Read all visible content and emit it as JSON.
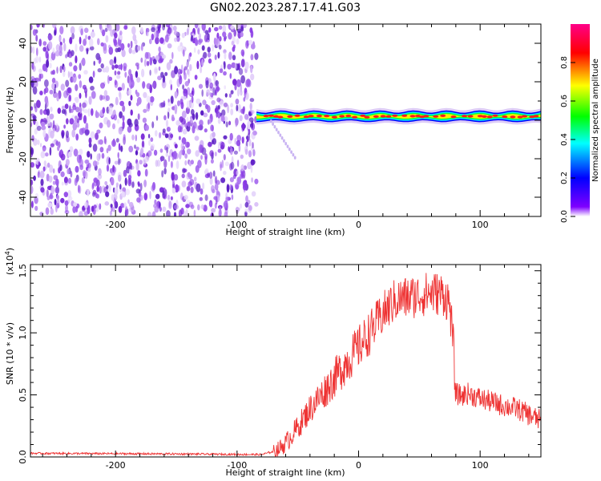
{
  "title": "GN02.2023.287.17.41.G03",
  "colors": {
    "snr_line": "#ee3333",
    "spectrogram_noise": "#7a2bd9"
  },
  "chart_data": [
    {
      "type": "heatmap",
      "name": "spectrogram",
      "xlabel": "Height of straight line (km)",
      "ylabel": "Frequency (Hz)",
      "xlim": [
        -270,
        150
      ],
      "ylim": [
        -50,
        50
      ],
      "x_ticks": [
        -200,
        -100,
        0,
        100
      ],
      "y_ticks": [
        -40,
        -20,
        0,
        20,
        40
      ],
      "noise_region_x": [
        -270,
        -84
      ],
      "signal_region_x": [
        -84,
        150
      ],
      "signal_frequency_hz": 2,
      "colorbar": {
        "label": "Normalized spectral amplitude",
        "range": [
          0.0,
          1.0
        ],
        "ticks": [
          "0.0",
          "0.2",
          "0.4",
          "0.6",
          "0.8"
        ],
        "colormap": [
          "#ffffff",
          "#7f00ff",
          "#0000ff",
          "#00ffff",
          "#00ff00",
          "#ffff00",
          "#ff0000",
          "#ff0088"
        ]
      }
    },
    {
      "type": "line",
      "name": "snr",
      "xlabel": "Height of straight line (km)",
      "ylabel": "SNR (10 * v/v)",
      "yscale_label": "(x10",
      "yscale_exp": "4",
      "yscale_close": ")",
      "xlim": [
        -270,
        150
      ],
      "ylim": [
        0.0,
        1.55
      ],
      "x_ticks": [
        -200,
        -100,
        0,
        100
      ],
      "y_ticks": [
        "0.0",
        "0.5",
        "1.0",
        "1.5"
      ],
      "envelope_x": [
        -270,
        -150,
        -80,
        -68,
        -60,
        -50,
        -40,
        -30,
        -20,
        -10,
        0,
        10,
        20,
        30,
        40,
        50,
        60,
        70,
        75,
        78,
        80,
        85,
        90,
        100,
        110,
        120,
        130,
        140,
        150
      ],
      "envelope_y": [
        0.03,
        0.025,
        0.02,
        0.05,
        0.12,
        0.25,
        0.4,
        0.52,
        0.65,
        0.78,
        0.9,
        1.03,
        1.17,
        1.28,
        1.3,
        1.32,
        1.34,
        1.33,
        1.25,
        0.9,
        0.52,
        0.5,
        0.52,
        0.48,
        0.45,
        0.42,
        0.4,
        0.35,
        0.3
      ]
    }
  ]
}
